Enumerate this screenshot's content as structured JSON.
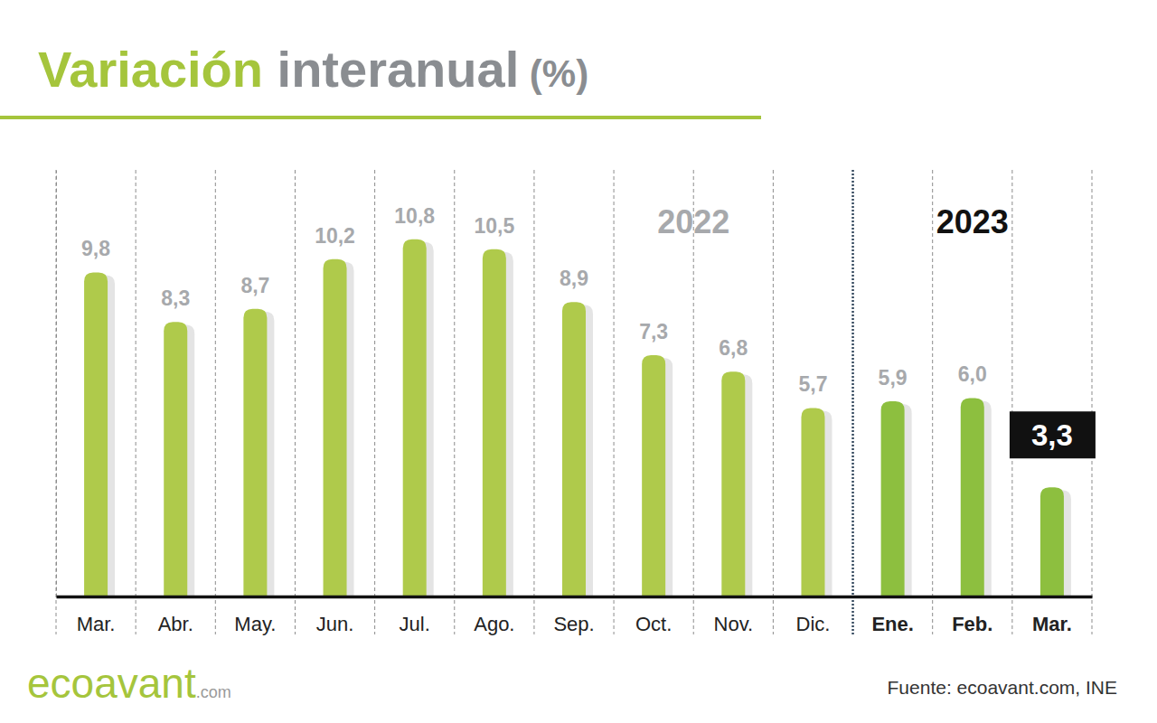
{
  "chart_data": {
    "type": "bar",
    "title": "Variación interanual (%)",
    "categories": [
      "Mar.",
      "Abr.",
      "May.",
      "Jun.",
      "Jul.",
      "Ago.",
      "Sep.",
      "Oct.",
      "Nov.",
      "Dic.",
      "Ene.",
      "Feb.",
      "Mar."
    ],
    "values": [
      9.8,
      8.3,
      8.7,
      10.2,
      10.8,
      10.5,
      8.9,
      7.3,
      6.8,
      5.7,
      5.9,
      6.0,
      3.3
    ],
    "value_labels": [
      "9,8",
      "8,3",
      "8,7",
      "10,2",
      "10,8",
      "10,5",
      "8,9",
      "7,3",
      "6,8",
      "5,7",
      "5,9",
      "6,0",
      "3,3"
    ],
    "colors": [
      "#afca4b",
      "#afca4b",
      "#afca4b",
      "#afca4b",
      "#afca4b",
      "#afca4b",
      "#afca4b",
      "#afca4b",
      "#afca4b",
      "#afca4b",
      "#8dbf3f",
      "#8dbf3f",
      "#8dbf3f"
    ],
    "ylim": [
      0,
      12.9
    ],
    "data_labels": true,
    "tick_labels": "x",
    "annotations": [
      "2022",
      "2023"
    ],
    "source": "Fuente: ecoavant.com, INE",
    "logo": "ecoavant.com"
  }
}
